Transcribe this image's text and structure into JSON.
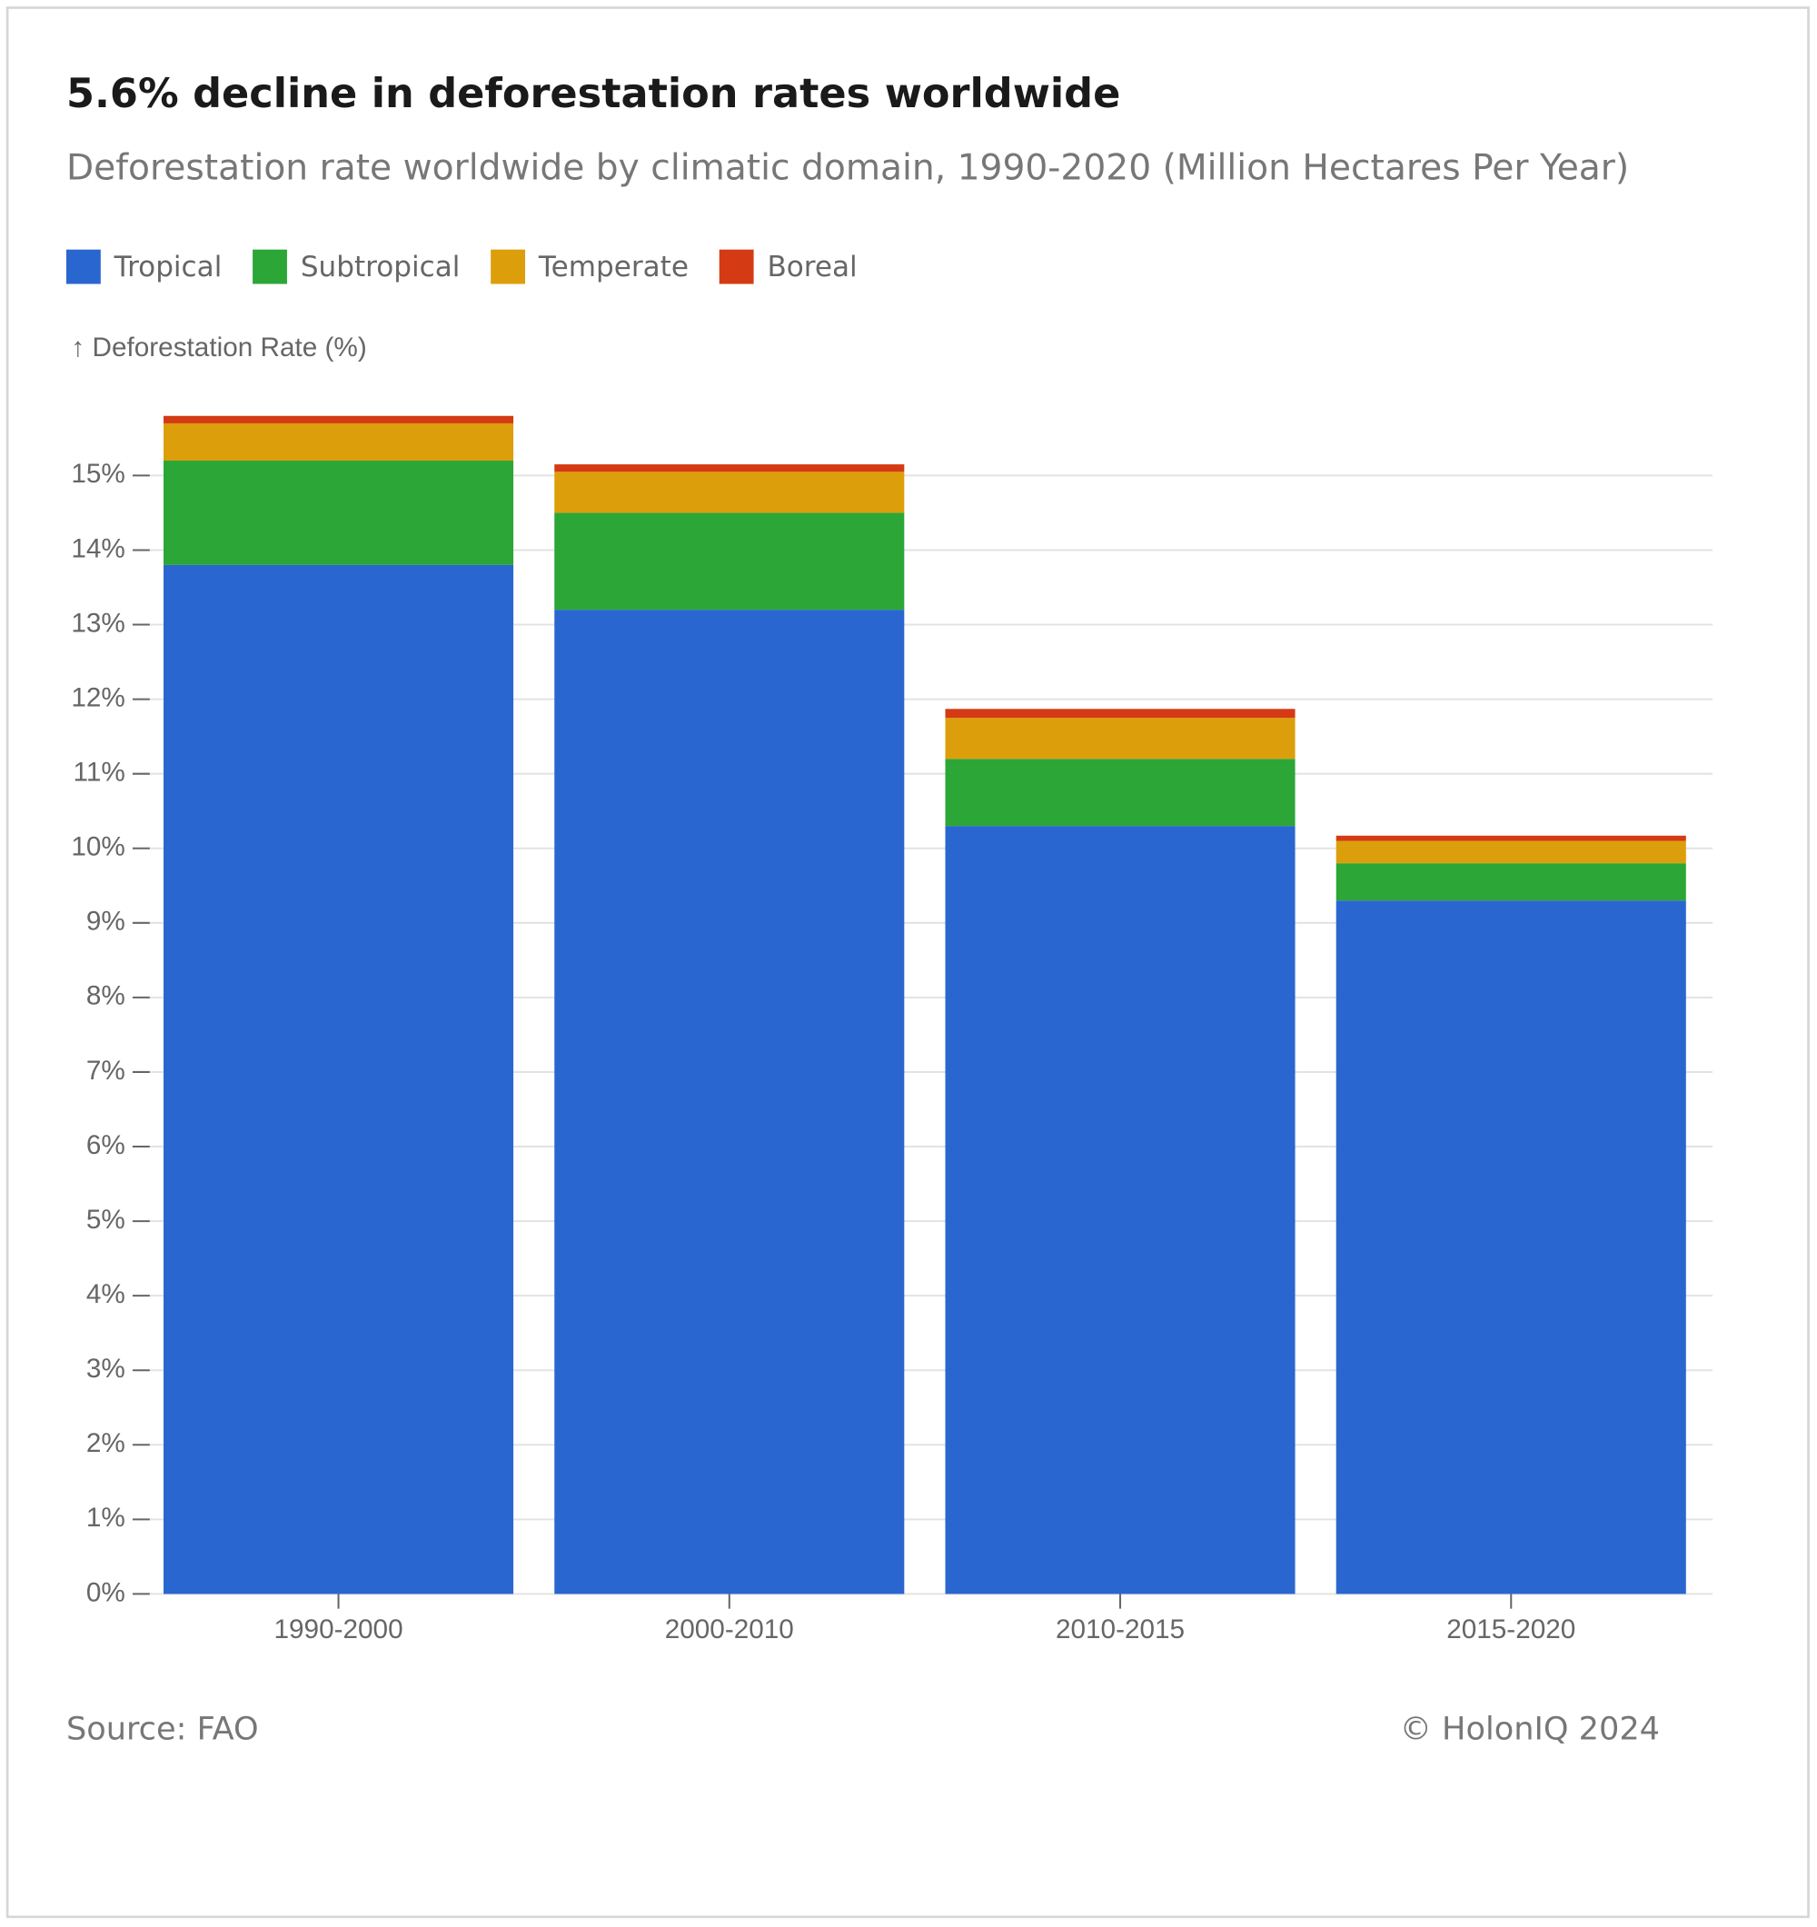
{
  "chart_data": {
    "type": "stacked_bar",
    "title": "5.6% decline in deforestation rates worldwide",
    "subtitle": "Deforestation rate worldwide by climatic domain, 1990-2020 (Million Hectares Per Year)",
    "y_label": "↑ Deforestation Rate (%)",
    "source": "Source: FAO",
    "credit": "© HolonIQ 2024",
    "categories": [
      "1990-2000",
      "2000-2010",
      "2010-2015",
      "2015-2020"
    ],
    "series": [
      {
        "name": "Tropical",
        "color": "#2a66d0",
        "values": [
          13.8,
          13.2,
          10.3,
          9.3
        ]
      },
      {
        "name": "Subtropical",
        "color": "#2ca637",
        "values": [
          1.4,
          1.3,
          0.9,
          0.5
        ]
      },
      {
        "name": "Temperate",
        "color": "#dc9e0b",
        "values": [
          0.5,
          0.55,
          0.55,
          0.3
        ]
      },
      {
        "name": "Boreal",
        "color": "#d43b14",
        "values": [
          0.1,
          0.1,
          0.12,
          0.07
        ]
      }
    ],
    "ylim": [
      0,
      16
    ],
    "yticks": [
      {
        "value": 0,
        "label": "0%"
      },
      {
        "value": 1,
        "label": "1%"
      },
      {
        "value": 2,
        "label": "2%"
      },
      {
        "value": 3,
        "label": "3%"
      },
      {
        "value": 4,
        "label": "4%"
      },
      {
        "value": 5,
        "label": "5%"
      },
      {
        "value": 6,
        "label": "6%"
      },
      {
        "value": 7,
        "label": "7%"
      },
      {
        "value": 8,
        "label": "8%"
      },
      {
        "value": 9,
        "label": "9%"
      },
      {
        "value": 10,
        "label": "10%"
      },
      {
        "value": 11,
        "label": "11%"
      },
      {
        "value": 12,
        "label": "12%"
      },
      {
        "value": 13,
        "label": "13%"
      },
      {
        "value": 14,
        "label": "14%"
      },
      {
        "value": 15,
        "label": "15%"
      }
    ],
    "grid": true
  }
}
